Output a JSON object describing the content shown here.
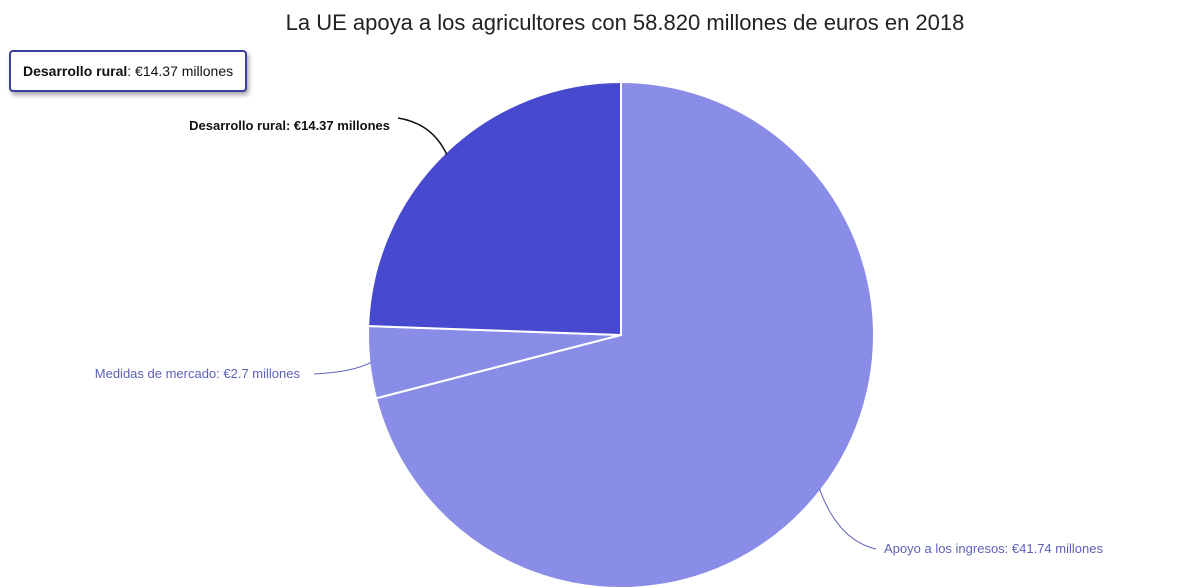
{
  "chart_data": {
    "type": "pie",
    "title": "La UE apoya a los agricultores con 58.820 millones de euros en 2018",
    "slices": [
      {
        "name": "Apoyo a los ingresos",
        "value": 41.74,
        "label": "Apoyo a los ingresos: €41.74 millones",
        "color": "#8a8de8",
        "label_color": "#5b62b8"
      },
      {
        "name": "Medidas de mercado",
        "value": 2.7,
        "label": "Medidas de mercado: €2.7 millones",
        "color": "#8a8de8",
        "label_color": "#5b62b8"
      },
      {
        "name": "Desarrollo rural",
        "value": 14.37,
        "label": "Desarrollo rural: €14.37 millones",
        "color": "#4749cf",
        "label_color": "#111111"
      }
    ],
    "tooltip": {
      "name": "Desarrollo rural",
      "separator": ": ",
      "value_text": "€14.37 millones"
    },
    "highlighted_slice": "Desarrollo rural",
    "legend": "none"
  }
}
